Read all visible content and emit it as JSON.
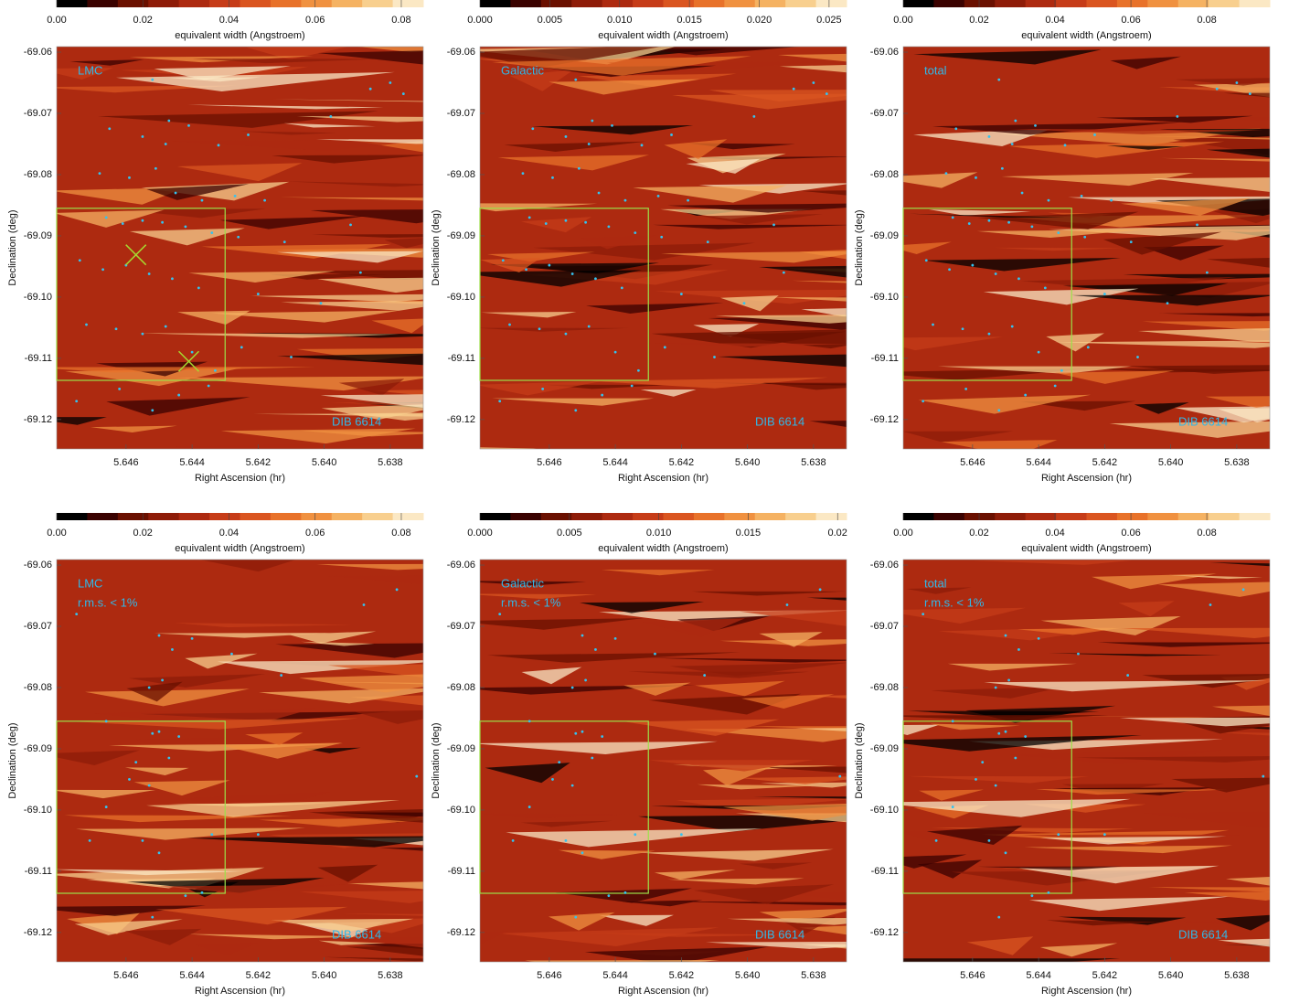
{
  "chart_data": [
    {
      "type": "scatter",
      "annotations": [
        "LMC"
      ],
      "corner_label": "DIB 6614",
      "annotation_color": "#30b8e8",
      "xlabel": "Right Ascension (hr)",
      "ylabel": "Declination (deg)",
      "colorbar": {
        "label": "equivalent width (Angstroem)",
        "clim": [
          0,
          0.0851
        ],
        "ticks": [
          {
            "value": 0,
            "label": "0.00"
          },
          0.02,
          0.04,
          0.06,
          0.08
        ],
        "colormap": [
          "#000000",
          "#3a0200",
          "#6a1000",
          "#8e1c08",
          "#ad2a10",
          "#c63c18",
          "#da5520",
          "#e8722a",
          "#f09140",
          "#f5b262",
          "#f8cf8e",
          "#fbe8c4"
        ]
      },
      "xlim": [
        5.6481,
        5.637
      ],
      "xticks": [
        5.646,
        5.644,
        5.642,
        {
          "value": 5.64,
          "label": "5.640"
        },
        5.638
      ],
      "ylim": [
        -69.1248,
        -69.0591
      ],
      "yticks": [
        -69.06,
        -69.07,
        -69.08,
        -69.09,
        {
          "value": -69.1,
          "label": "-69.10"
        },
        -69.11,
        -69.12
      ],
      "color": "#33c3f0",
      "x": [
        5.6452,
        5.6447,
        5.6465,
        5.6455,
        5.6448,
        5.6441,
        5.6432,
        5.6423,
        5.6468,
        5.6459,
        5.6451,
        5.6445,
        5.6437,
        5.6427,
        5.6418,
        5.6466,
        5.6461,
        5.6455,
        5.6449,
        5.6442,
        5.6434,
        5.6426,
        5.6412,
        5.6392,
        5.6474,
        5.6467,
        5.646,
        5.6453,
        5.6446,
        5.6438,
        5.642,
        5.6401,
        5.6472,
        5.6463,
        5.6455,
        5.6448,
        5.644,
        5.6433,
        5.6425,
        5.641,
        5.6475,
        5.6462,
        5.6452,
        5.6444,
        5.6435,
        5.638,
        5.6376,
        5.6386,
        5.6398,
        5.6389
      ],
      "y": [
        -69.0645,
        -69.0712,
        -69.0725,
        -69.0738,
        -69.075,
        -69.072,
        -69.0752,
        -69.0735,
        -69.0798,
        -69.0805,
        -69.079,
        -69.083,
        -69.0842,
        -69.0835,
        -69.0842,
        -69.087,
        -69.088,
        -69.0875,
        -69.0878,
        -69.0885,
        -69.0895,
        -69.0902,
        -69.091,
        -69.0882,
        -69.094,
        -69.0955,
        -69.0948,
        -69.0962,
        -69.097,
        -69.0985,
        -69.0995,
        -69.101,
        -69.1045,
        -69.1052,
        -69.106,
        -69.1048,
        -69.109,
        -69.112,
        -69.1082,
        -69.1098,
        -69.117,
        -69.115,
        -69.1185,
        -69.116,
        -69.1145,
        -69.065,
        -69.0668,
        -69.066,
        -69.0705,
        -69.096
      ],
      "box": {
        "color": "#9be04a",
        "x": [
          5.6481,
          5.643
        ],
        "y": [
          -69.1136,
          -69.0855
        ]
      },
      "markers": {
        "color": "#a6d930",
        "x": [
          5.6457,
          5.6441
        ],
        "y": [
          -69.0931,
          -69.1105
        ]
      }
    },
    {
      "type": "scatter",
      "annotations": [
        "Galactic"
      ],
      "corner_label": "DIB 6614",
      "annotation_color": "#30b8e8",
      "xlabel": "Right Ascension (hr)",
      "ylabel": "Declination (deg)",
      "colorbar": {
        "label": "equivalent width (Angstroem)",
        "clim": [
          0,
          0.02625
        ],
        "ticks": [
          {
            "value": 0,
            "label": "0.000"
          },
          0.005,
          {
            "value": 0.01,
            "label": "0.010"
          },
          0.015,
          {
            "value": 0.02,
            "label": "0.020"
          },
          0.025
        ],
        "colormap": [
          "#000000",
          "#3a0200",
          "#6a1000",
          "#8e1c08",
          "#ad2a10",
          "#c63c18",
          "#da5520",
          "#e8722a",
          "#f09140",
          "#f5b262",
          "#f8cf8e",
          "#fbe8c4"
        ]
      },
      "xlim": [
        5.6481,
        5.637
      ],
      "xticks": [
        5.646,
        5.644,
        5.642,
        {
          "value": 5.64,
          "label": "5.640"
        },
        5.638
      ],
      "ylim": [
        -69.1248,
        -69.0591
      ],
      "yticks": [
        -69.06,
        -69.07,
        -69.08,
        -69.09,
        {
          "value": -69.1,
          "label": "-69.10"
        },
        -69.11,
        -69.12
      ],
      "color": "#33c3f0",
      "x": [
        5.6452,
        5.6447,
        5.6465,
        5.6455,
        5.6448,
        5.6441,
        5.6432,
        5.6423,
        5.6468,
        5.6459,
        5.6451,
        5.6445,
        5.6437,
        5.6427,
        5.6418,
        5.6466,
        5.6461,
        5.6455,
        5.6449,
        5.6442,
        5.6434,
        5.6426,
        5.6412,
        5.6392,
        5.6474,
        5.6467,
        5.646,
        5.6453,
        5.6446,
        5.6438,
        5.642,
        5.6401,
        5.6472,
        5.6463,
        5.6455,
        5.6448,
        5.644,
        5.6433,
        5.6425,
        5.641,
        5.6475,
        5.6462,
        5.6452,
        5.6444,
        5.6435,
        5.638,
        5.6376,
        5.6386,
        5.6398,
        5.6389
      ],
      "y": [
        -69.0645,
        -69.0712,
        -69.0725,
        -69.0738,
        -69.075,
        -69.072,
        -69.0752,
        -69.0735,
        -69.0798,
        -69.0805,
        -69.079,
        -69.083,
        -69.0842,
        -69.0835,
        -69.0842,
        -69.087,
        -69.088,
        -69.0875,
        -69.0878,
        -69.0885,
        -69.0895,
        -69.0902,
        -69.091,
        -69.0882,
        -69.094,
        -69.0955,
        -69.0948,
        -69.0962,
        -69.097,
        -69.0985,
        -69.0995,
        -69.101,
        -69.1045,
        -69.1052,
        -69.106,
        -69.1048,
        -69.109,
        -69.112,
        -69.1082,
        -69.1098,
        -69.117,
        -69.115,
        -69.1185,
        -69.116,
        -69.1145,
        -69.065,
        -69.0668,
        -69.066,
        -69.0705,
        -69.096
      ],
      "box": {
        "color": "#9be04a",
        "x": [
          5.6481,
          5.643
        ],
        "y": [
          -69.1136,
          -69.0855
        ]
      }
    },
    {
      "type": "scatter",
      "annotations": [
        "total"
      ],
      "corner_label": "DIB 6614",
      "annotation_color": "#30b8e8",
      "xlabel": "Right Ascension (hr)",
      "ylabel": "Declination (deg)",
      "colorbar": {
        "label": "equivalent width (Angstroem)",
        "clim": [
          0,
          0.0966
        ],
        "ticks": [
          {
            "value": 0,
            "label": "0.00"
          },
          0.02,
          0.04,
          0.06,
          0.08
        ],
        "colormap": [
          "#000000",
          "#3a0200",
          "#6a1000",
          "#8e1c08",
          "#ad2a10",
          "#c63c18",
          "#da5520",
          "#e8722a",
          "#f09140",
          "#f5b262",
          "#f8cf8e",
          "#fbe8c4"
        ]
      },
      "xlim": [
        5.6481,
        5.637
      ],
      "xticks": [
        5.646,
        5.644,
        5.642,
        {
          "value": 5.64,
          "label": "5.640"
        },
        5.638
      ],
      "ylim": [
        -69.1248,
        -69.0591
      ],
      "yticks": [
        -69.06,
        -69.07,
        -69.08,
        -69.09,
        {
          "value": -69.1,
          "label": "-69.10"
        },
        -69.11,
        -69.12
      ],
      "color": "#33c3f0",
      "x": [
        5.6452,
        5.6447,
        5.6465,
        5.6455,
        5.6448,
        5.6441,
        5.6432,
        5.6423,
        5.6468,
        5.6459,
        5.6451,
        5.6445,
        5.6437,
        5.6427,
        5.6418,
        5.6466,
        5.6461,
        5.6455,
        5.6449,
        5.6442,
        5.6434,
        5.6426,
        5.6412,
        5.6392,
        5.6474,
        5.6467,
        5.646,
        5.6453,
        5.6446,
        5.6438,
        5.642,
        5.6401,
        5.6472,
        5.6463,
        5.6455,
        5.6448,
        5.644,
        5.6433,
        5.6425,
        5.641,
        5.6475,
        5.6462,
        5.6452,
        5.6444,
        5.6435,
        5.638,
        5.6376,
        5.6386,
        5.6398,
        5.6389
      ],
      "y": [
        -69.0645,
        -69.0712,
        -69.0725,
        -69.0738,
        -69.075,
        -69.072,
        -69.0752,
        -69.0735,
        -69.0798,
        -69.0805,
        -69.079,
        -69.083,
        -69.0842,
        -69.0835,
        -69.0842,
        -69.087,
        -69.088,
        -69.0875,
        -69.0878,
        -69.0885,
        -69.0895,
        -69.0902,
        -69.091,
        -69.0882,
        -69.094,
        -69.0955,
        -69.0948,
        -69.0962,
        -69.097,
        -69.0985,
        -69.0995,
        -69.101,
        -69.1045,
        -69.1052,
        -69.106,
        -69.1048,
        -69.109,
        -69.112,
        -69.1082,
        -69.1098,
        -69.117,
        -69.115,
        -69.1185,
        -69.116,
        -69.1145,
        -69.065,
        -69.0668,
        -69.066,
        -69.0705,
        -69.096
      ],
      "box": {
        "color": "#9be04a",
        "x": [
          5.6481,
          5.643
        ],
        "y": [
          -69.1136,
          -69.0855
        ]
      }
    },
    {
      "type": "scatter",
      "annotations": [
        "LMC",
        "r.m.s. < 1%"
      ],
      "corner_label": "DIB 6614",
      "annotation_color": "#30b8e8",
      "xlabel": "Right Ascension (hr)",
      "ylabel": "Declination (deg)",
      "colorbar": {
        "label": "equivalent width (Angstroem)",
        "clim": [
          0,
          0.0851
        ],
        "ticks": [
          {
            "value": 0,
            "label": "0.00"
          },
          0.02,
          0.04,
          0.06,
          0.08
        ],
        "colormap": [
          "#000000",
          "#3a0200",
          "#6a1000",
          "#8e1c08",
          "#ad2a10",
          "#c63c18",
          "#da5520",
          "#e8722a",
          "#f09140",
          "#f5b262",
          "#f8cf8e",
          "#fbe8c4"
        ]
      },
      "xlim": [
        5.6481,
        5.637
      ],
      "xticks": [
        5.646,
        5.644,
        5.642,
        {
          "value": 5.64,
          "label": "5.640"
        },
        5.638
      ],
      "ylim": [
        -69.1248,
        -69.0591
      ],
      "yticks": [
        -69.06,
        -69.07,
        -69.08,
        -69.09,
        {
          "value": -69.1,
          "label": "-69.10"
        },
        -69.11,
        -69.12
      ],
      "color": "#33c3f0",
      "x": [
        5.6475,
        5.645,
        5.6446,
        5.644,
        5.6428,
        5.6453,
        5.6449,
        5.6413,
        5.6466,
        5.6452,
        5.645,
        5.6444,
        5.6447,
        5.6457,
        5.6453,
        5.6459,
        5.6466,
        5.6471,
        5.6455,
        5.645,
        5.6434,
        5.642,
        5.6442,
        5.6437,
        5.6452,
        5.6388,
        5.6378,
        5.6372
      ],
      "y": [
        -69.068,
        -69.0715,
        -69.0738,
        -69.072,
        -69.0745,
        -69.08,
        -69.0788,
        -69.078,
        -69.0855,
        -69.0875,
        -69.0872,
        -69.088,
        -69.0915,
        -69.0922,
        -69.096,
        -69.095,
        -69.0995,
        -69.105,
        -69.105,
        -69.107,
        -69.104,
        -69.104,
        -69.114,
        -69.1135,
        -69.1175,
        -69.0665,
        -69.064,
        -69.0945
      ],
      "box": {
        "color": "#9be04a",
        "x": [
          5.6481,
          5.643
        ],
        "y": [
          -69.1136,
          -69.0855
        ]
      }
    },
    {
      "type": "scatter",
      "annotations": [
        "Galactic",
        "r.m.s. < 1%"
      ],
      "corner_label": "DIB 6614",
      "annotation_color": "#30b8e8",
      "xlabel": "Right Ascension (hr)",
      "ylabel": "Declination (deg)",
      "colorbar": {
        "label": "equivalent width (Angstroem)",
        "clim": [
          0,
          0.0205
        ],
        "ticks": [
          {
            "value": 0,
            "label": "0.000"
          },
          0.005,
          {
            "value": 0.01,
            "label": "0.010"
          },
          0.015,
          0.02
        ],
        "colormap": [
          "#000000",
          "#3a0200",
          "#6a1000",
          "#8e1c08",
          "#ad2a10",
          "#c63c18",
          "#da5520",
          "#e8722a",
          "#f09140",
          "#f5b262",
          "#f8cf8e",
          "#fbe8c4"
        ]
      },
      "xlim": [
        5.6481,
        5.637
      ],
      "xticks": [
        5.646,
        5.644,
        5.642,
        {
          "value": 5.64,
          "label": "5.640"
        },
        5.638
      ],
      "ylim": [
        -69.1248,
        -69.0591
      ],
      "yticks": [
        -69.06,
        -69.07,
        -69.08,
        -69.09,
        {
          "value": -69.1,
          "label": "-69.10"
        },
        -69.11,
        -69.12
      ],
      "color": "#33c3f0",
      "x": [
        5.6475,
        5.645,
        5.6446,
        5.644,
        5.6428,
        5.6453,
        5.6449,
        5.6413,
        5.6466,
        5.6452,
        5.645,
        5.6444,
        5.6447,
        5.6457,
        5.6453,
        5.6459,
        5.6466,
        5.6471,
        5.6455,
        5.645,
        5.6434,
        5.642,
        5.6442,
        5.6437,
        5.6452,
        5.6388,
        5.6378,
        5.6372
      ],
      "y": [
        -69.068,
        -69.0715,
        -69.0738,
        -69.072,
        -69.0745,
        -69.08,
        -69.0788,
        -69.078,
        -69.0855,
        -69.0875,
        -69.0872,
        -69.088,
        -69.0915,
        -69.0922,
        -69.096,
        -69.095,
        -69.0995,
        -69.105,
        -69.105,
        -69.107,
        -69.104,
        -69.104,
        -69.114,
        -69.1135,
        -69.1175,
        -69.0665,
        -69.064,
        -69.0945
      ],
      "box": {
        "color": "#9be04a",
        "x": [
          5.6481,
          5.643
        ],
        "y": [
          -69.1136,
          -69.0855
        ]
      }
    },
    {
      "type": "scatter",
      "annotations": [
        "total",
        "r.m.s. < 1%"
      ],
      "corner_label": "DIB 6614",
      "annotation_color": "#30b8e8",
      "xlabel": "Right Ascension (hr)",
      "ylabel": "Declination (deg)",
      "colorbar": {
        "label": "equivalent width (Angstroem)",
        "clim": [
          0,
          0.0966
        ],
        "ticks": [
          {
            "value": 0,
            "label": "0.00"
          },
          0.02,
          0.04,
          0.06,
          0.08
        ],
        "colormap": [
          "#000000",
          "#3a0200",
          "#6a1000",
          "#8e1c08",
          "#ad2a10",
          "#c63c18",
          "#da5520",
          "#e8722a",
          "#f09140",
          "#f5b262",
          "#f8cf8e",
          "#fbe8c4"
        ]
      },
      "xlim": [
        5.6481,
        5.637
      ],
      "xticks": [
        5.646,
        5.644,
        5.642,
        {
          "value": 5.64,
          "label": "5.640"
        },
        5.638
      ],
      "ylim": [
        -69.1248,
        -69.0591
      ],
      "yticks": [
        -69.06,
        -69.07,
        -69.08,
        -69.09,
        {
          "value": -69.1,
          "label": "-69.10"
        },
        -69.11,
        -69.12
      ],
      "color": "#33c3f0",
      "x": [
        5.6475,
        5.645,
        5.6446,
        5.644,
        5.6428,
        5.6453,
        5.6449,
        5.6413,
        5.6466,
        5.6452,
        5.645,
        5.6444,
        5.6447,
        5.6457,
        5.6453,
        5.6459,
        5.6466,
        5.6471,
        5.6455,
        5.645,
        5.6434,
        5.642,
        5.6442,
        5.6437,
        5.6452,
        5.6388,
        5.6378,
        5.6372
      ],
      "y": [
        -69.068,
        -69.0715,
        -69.0738,
        -69.072,
        -69.0745,
        -69.08,
        -69.0788,
        -69.078,
        -69.0855,
        -69.0875,
        -69.0872,
        -69.088,
        -69.0915,
        -69.0922,
        -69.096,
        -69.095,
        -69.0995,
        -69.105,
        -69.105,
        -69.107,
        -69.104,
        -69.104,
        -69.114,
        -69.1135,
        -69.1175,
        -69.0665,
        -69.064,
        -69.0945
      ],
      "box": {
        "color": "#9be04a",
        "x": [
          5.6481,
          5.643
        ],
        "y": [
          -69.1136,
          -69.0855
        ]
      }
    }
  ]
}
